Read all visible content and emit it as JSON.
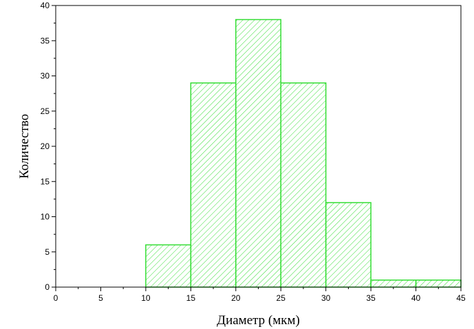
{
  "chart_data": {
    "type": "bar",
    "histogram": true,
    "bin_edges": [
      10,
      15,
      20,
      25,
      30,
      35,
      40,
      45
    ],
    "values": [
      6,
      29,
      38,
      29,
      12,
      1,
      1
    ],
    "xlabel": "Диаметр (мкм)",
    "ylabel": "Количество",
    "xlim": [
      0,
      45
    ],
    "ylim": [
      0,
      40
    ],
    "xticks": [
      "0",
      "5",
      "10",
      "15",
      "20",
      "25",
      "30",
      "35",
      "40",
      "45"
    ],
    "yticks": [
      "0",
      "5",
      "10",
      "15",
      "20",
      "25",
      "30",
      "35",
      "40"
    ],
    "grid": false,
    "legend": "none",
    "bar_fill": "hatched",
    "bar_color": "#33dd33"
  }
}
